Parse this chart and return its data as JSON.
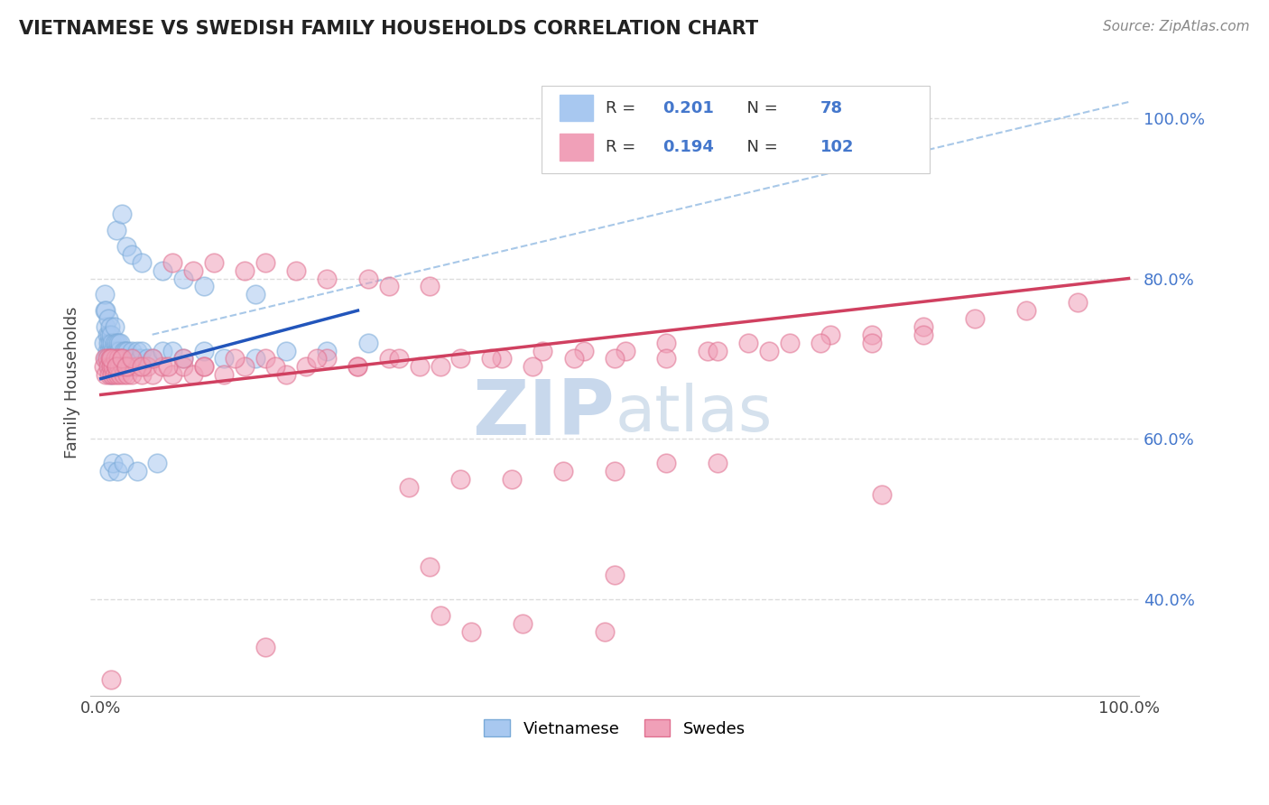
{
  "title": "VIETNAMESE VS SWEDISH FAMILY HOUSEHOLDS CORRELATION CHART",
  "source": "Source: ZipAtlas.com",
  "ylabel": "Family Households",
  "blue_color": "#A8C8F0",
  "pink_color": "#F0A0B8",
  "blue_edge_color": "#7AAAD8",
  "pink_edge_color": "#E07090",
  "blue_line_color": "#2255BB",
  "pink_line_color": "#D04060",
  "dashed_line_color": "#A8C8E8",
  "watermark_color": "#C8D8EC",
  "grid_color": "#DDDDDD",
  "title_color": "#222222",
  "ytick_color": "#4477CC",
  "legend_border_color": "#CCCCCC",
  "xlim": [
    -0.01,
    1.01
  ],
  "ylim": [
    0.28,
    1.06
  ],
  "ytick_positions": [
    0.4,
    0.6,
    0.8,
    1.0
  ],
  "ytick_labels": [
    "40.0%",
    "60.0%",
    "80.0%",
    "100.0%"
  ],
  "blue_scatter_x": [
    0.003,
    0.004,
    0.004,
    0.005,
    0.005,
    0.005,
    0.006,
    0.006,
    0.007,
    0.007,
    0.007,
    0.008,
    0.008,
    0.008,
    0.009,
    0.009,
    0.009,
    0.01,
    0.01,
    0.01,
    0.011,
    0.011,
    0.012,
    0.012,
    0.013,
    0.013,
    0.013,
    0.014,
    0.014,
    0.015,
    0.015,
    0.016,
    0.016,
    0.017,
    0.017,
    0.018,
    0.018,
    0.019,
    0.019,
    0.02,
    0.021,
    0.022,
    0.023,
    0.024,
    0.025,
    0.026,
    0.028,
    0.03,
    0.032,
    0.035,
    0.038,
    0.04,
    0.045,
    0.05,
    0.06,
    0.07,
    0.08,
    0.1,
    0.12,
    0.15,
    0.18,
    0.22,
    0.26,
    0.015,
    0.02,
    0.025,
    0.03,
    0.04,
    0.06,
    0.08,
    0.1,
    0.15,
    0.008,
    0.012,
    0.016,
    0.022,
    0.035,
    0.055
  ],
  "blue_scatter_y": [
    0.72,
    0.76,
    0.78,
    0.7,
    0.74,
    0.76,
    0.71,
    0.73,
    0.7,
    0.72,
    0.75,
    0.69,
    0.71,
    0.73,
    0.7,
    0.72,
    0.74,
    0.68,
    0.71,
    0.73,
    0.7,
    0.72,
    0.69,
    0.71,
    0.7,
    0.72,
    0.74,
    0.69,
    0.71,
    0.7,
    0.72,
    0.69,
    0.71,
    0.7,
    0.72,
    0.69,
    0.71,
    0.7,
    0.72,
    0.69,
    0.7,
    0.71,
    0.7,
    0.71,
    0.7,
    0.71,
    0.7,
    0.71,
    0.7,
    0.71,
    0.7,
    0.71,
    0.7,
    0.7,
    0.71,
    0.71,
    0.7,
    0.71,
    0.7,
    0.7,
    0.71,
    0.71,
    0.72,
    0.86,
    0.88,
    0.84,
    0.83,
    0.82,
    0.81,
    0.8,
    0.79,
    0.78,
    0.56,
    0.57,
    0.56,
    0.57,
    0.56,
    0.57
  ],
  "pink_scatter_x": [
    0.003,
    0.004,
    0.005,
    0.006,
    0.007,
    0.008,
    0.009,
    0.01,
    0.011,
    0.012,
    0.013,
    0.014,
    0.015,
    0.016,
    0.017,
    0.018,
    0.019,
    0.02,
    0.021,
    0.022,
    0.024,
    0.026,
    0.028,
    0.03,
    0.035,
    0.04,
    0.045,
    0.05,
    0.06,
    0.07,
    0.08,
    0.09,
    0.1,
    0.12,
    0.14,
    0.16,
    0.18,
    0.2,
    0.22,
    0.25,
    0.28,
    0.31,
    0.35,
    0.39,
    0.43,
    0.47,
    0.51,
    0.55,
    0.59,
    0.63,
    0.67,
    0.71,
    0.75,
    0.8,
    0.85,
    0.9,
    0.95,
    0.01,
    0.015,
    0.02,
    0.025,
    0.03,
    0.04,
    0.05,
    0.065,
    0.08,
    0.1,
    0.13,
    0.17,
    0.21,
    0.25,
    0.29,
    0.33,
    0.38,
    0.42,
    0.46,
    0.5,
    0.55,
    0.6,
    0.65,
    0.7,
    0.75,
    0.8,
    0.3,
    0.35,
    0.4,
    0.45,
    0.5,
    0.55,
    0.6,
    0.07,
    0.09,
    0.11,
    0.14,
    0.16,
    0.19,
    0.22,
    0.26,
    0.28,
    0.32,
    0.36,
    0.41
  ],
  "pink_scatter_y": [
    0.69,
    0.7,
    0.68,
    0.7,
    0.69,
    0.68,
    0.7,
    0.69,
    0.68,
    0.69,
    0.68,
    0.7,
    0.69,
    0.68,
    0.7,
    0.69,
    0.68,
    0.7,
    0.69,
    0.68,
    0.69,
    0.68,
    0.69,
    0.68,
    0.69,
    0.68,
    0.69,
    0.68,
    0.69,
    0.68,
    0.69,
    0.68,
    0.69,
    0.68,
    0.69,
    0.7,
    0.68,
    0.69,
    0.7,
    0.69,
    0.7,
    0.69,
    0.7,
    0.7,
    0.71,
    0.71,
    0.71,
    0.72,
    0.71,
    0.72,
    0.72,
    0.73,
    0.73,
    0.74,
    0.75,
    0.76,
    0.77,
    0.7,
    0.69,
    0.7,
    0.69,
    0.7,
    0.69,
    0.7,
    0.69,
    0.7,
    0.69,
    0.7,
    0.69,
    0.7,
    0.69,
    0.7,
    0.69,
    0.7,
    0.69,
    0.7,
    0.7,
    0.7,
    0.71,
    0.71,
    0.72,
    0.72,
    0.73,
    0.54,
    0.55,
    0.55,
    0.56,
    0.56,
    0.57,
    0.57,
    0.82,
    0.81,
    0.82,
    0.81,
    0.82,
    0.81,
    0.8,
    0.8,
    0.79,
    0.79,
    0.36,
    0.37
  ],
  "pink_outlier_x": [
    0.32,
    0.5,
    0.76,
    0.33,
    0.49,
    0.16,
    0.01
  ],
  "pink_outlier_y": [
    0.44,
    0.43,
    0.53,
    0.38,
    0.36,
    0.34,
    0.3
  ],
  "blue_line_x0": 0.0,
  "blue_line_x1": 0.25,
  "blue_line_y0": 0.675,
  "blue_line_y1": 0.76,
  "pink_line_x0": 0.0,
  "pink_line_x1": 1.0,
  "pink_line_y0": 0.655,
  "pink_line_y1": 0.8,
  "dash_line_x0": 0.05,
  "dash_line_x1": 1.0,
  "dash_line_y0": 0.73,
  "dash_line_y1": 1.02
}
